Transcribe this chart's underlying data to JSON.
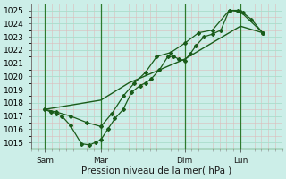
{
  "bg_color": "#cceee8",
  "grid_major_color": "#aaddcc",
  "grid_minor_color": "#ddbbbb",
  "line_color": "#1a5c1a",
  "vline_color": "#2d7a2d",
  "xlabel": "Pression niveau de la mer( hPa )",
  "ylim": [
    1014.5,
    1025.5
  ],
  "xlim": [
    0,
    9.0
  ],
  "yticks": [
    1015,
    1016,
    1017,
    1018,
    1019,
    1020,
    1021,
    1022,
    1023,
    1024,
    1025
  ],
  "xtick_labels": [
    "Sam",
    "Mar",
    "Dim",
    "Lun"
  ],
  "xtick_pos": [
    0.5,
    2.5,
    5.5,
    7.5
  ],
  "vline_pos": [
    0.5,
    2.5,
    5.5,
    7.5
  ],
  "series1_x": [
    0.5,
    0.7,
    0.9,
    1.1,
    1.4,
    1.8,
    2.1,
    2.3,
    2.5,
    2.75,
    3.0,
    3.3,
    3.6,
    3.9,
    4.1,
    4.3,
    4.6,
    4.9,
    5.1,
    5.3,
    5.5,
    5.7,
    5.9,
    6.2,
    6.5,
    6.8,
    7.1,
    7.4,
    7.6,
    7.9,
    8.3
  ],
  "series1_y": [
    1017.5,
    1017.3,
    1017.2,
    1017.0,
    1016.3,
    1014.9,
    1014.8,
    1015.0,
    1015.2,
    1016.0,
    1016.8,
    1017.5,
    1018.8,
    1019.3,
    1019.5,
    1019.8,
    1020.5,
    1021.5,
    1021.5,
    1021.3,
    1021.2,
    1021.7,
    1022.3,
    1023.0,
    1023.2,
    1023.5,
    1025.0,
    1025.0,
    1024.8,
    1024.3,
    1023.3
  ],
  "series2_x": [
    0.5,
    0.9,
    1.4,
    2.0,
    2.5,
    2.9,
    3.3,
    3.7,
    4.1,
    4.5,
    5.0,
    5.5,
    6.0,
    6.5,
    7.1,
    7.5,
    8.3
  ],
  "series2_y": [
    1017.5,
    1017.3,
    1017.0,
    1016.5,
    1016.2,
    1017.2,
    1018.5,
    1019.5,
    1020.3,
    1021.5,
    1021.8,
    1022.5,
    1023.3,
    1023.5,
    1025.0,
    1024.9,
    1023.3
  ],
  "series3_x": [
    0.5,
    2.5,
    3.5,
    5.5,
    7.5,
    8.3
  ],
  "series3_y": [
    1017.5,
    1018.2,
    1019.5,
    1021.3,
    1023.8,
    1023.3
  ],
  "xlabel_fontsize": 7.5,
  "tick_fontsize": 6.5,
  "marker_size": 2.0
}
